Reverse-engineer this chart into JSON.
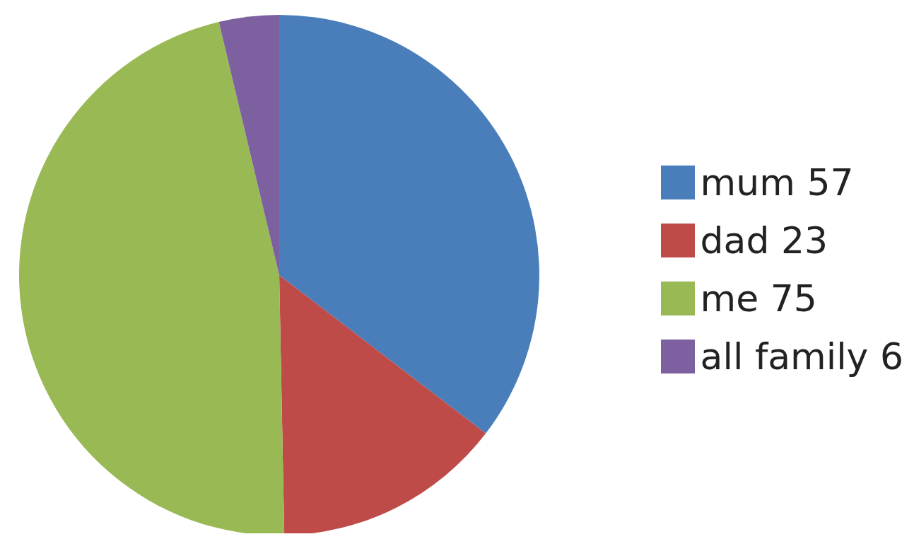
{
  "chart_data": {
    "type": "pie",
    "categories": [
      "mum 57",
      "dad 23",
      "me 75",
      "all family 6"
    ],
    "values": [
      57,
      23,
      75,
      6
    ],
    "colors": [
      "#4a7ebb",
      "#be4b48",
      "#98b954",
      "#7d60a0"
    ],
    "legend": "right"
  }
}
